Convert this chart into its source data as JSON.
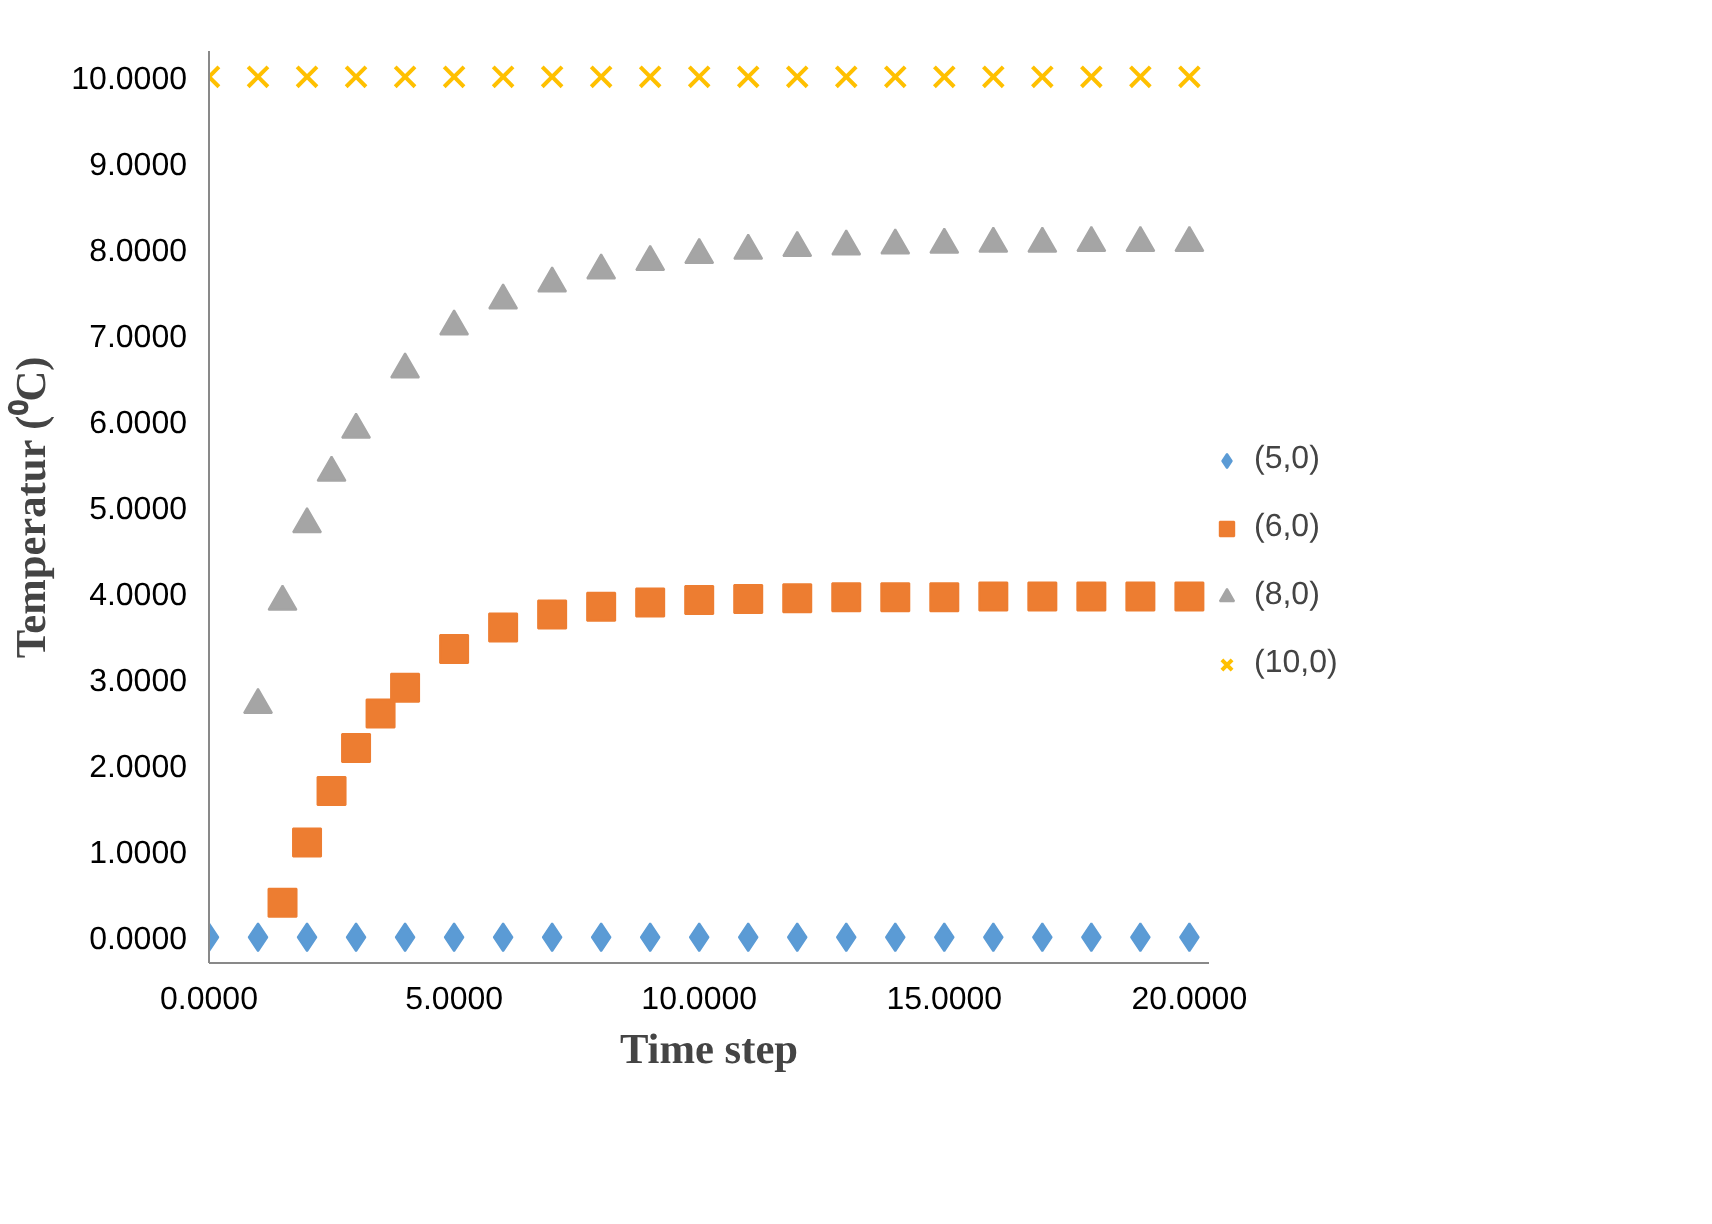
{
  "chart_data": {
    "type": "scatter",
    "xlabel": "Time step",
    "ylabel": "Temperatur (⁰C)",
    "x": [
      0,
      1,
      2,
      3,
      4,
      5,
      6,
      7,
      8,
      9,
      10,
      11,
      12,
      13,
      14,
      15,
      16,
      17,
      18,
      19,
      20
    ],
    "series": [
      {
        "name": "(5,0)",
        "color": "#5b9bd5",
        "marker": "diamond",
        "values": [
          0,
          0,
          0,
          0,
          0,
          0,
          0,
          0,
          0,
          0,
          0,
          0,
          0,
          0,
          0,
          0,
          0,
          0,
          0,
          0,
          0
        ]
      },
      {
        "name": "(6,0)",
        "color": "#ed7d31",
        "marker": "square",
        "x": [
          1.5,
          2,
          2.5,
          3,
          3.5,
          4,
          5,
          6,
          7,
          8,
          9,
          10,
          11,
          12,
          13,
          14,
          15,
          16,
          17,
          18,
          19,
          20
        ],
        "values": [
          0.4,
          1.1,
          1.7,
          2.2,
          2.6,
          2.9,
          3.35,
          3.6,
          3.75,
          3.84,
          3.89,
          3.92,
          3.93,
          3.94,
          3.95,
          3.95,
          3.95,
          3.96,
          3.96,
          3.96,
          3.96,
          3.96
        ]
      },
      {
        "name": "(8,0)",
        "color": "#a5a5a5",
        "marker": "triangle",
        "x": [
          1,
          1.5,
          2,
          2.5,
          3,
          4,
          5,
          6,
          7,
          8,
          9,
          10,
          11,
          12,
          13,
          14,
          15,
          16,
          17,
          18,
          19,
          20
        ],
        "values": [
          2.7,
          3.9,
          4.8,
          5.4,
          5.9,
          6.6,
          7.1,
          7.4,
          7.6,
          7.75,
          7.85,
          7.93,
          7.98,
          8.01,
          8.03,
          8.04,
          8.05,
          8.06,
          8.06,
          8.07,
          8.07,
          8.07
        ]
      },
      {
        "name": "(10,0)",
        "color": "#ffc000",
        "marker": "cross",
        "values": [
          10,
          10,
          10,
          10,
          10,
          10,
          10,
          10,
          10,
          10,
          10,
          10,
          10,
          10,
          10,
          10,
          10,
          10,
          10,
          10,
          10
        ]
      }
    ],
    "xlim": [
      0,
      20.4
    ],
    "ylim": [
      -0.3,
      10.3
    ],
    "xticks": [
      {
        "value": 0,
        "label": "0.0000"
      },
      {
        "value": 5,
        "label": "5.0000"
      },
      {
        "value": 10,
        "label": "10.0000"
      },
      {
        "value": 15,
        "label": "15.0000"
      },
      {
        "value": 20,
        "label": "20.0000"
      }
    ],
    "yticks": [
      {
        "value": 0,
        "label": "0.0000"
      },
      {
        "value": 1,
        "label": "1.0000"
      },
      {
        "value": 2,
        "label": "2.0000"
      },
      {
        "value": 3,
        "label": "3.0000"
      },
      {
        "value": 4,
        "label": "4.0000"
      },
      {
        "value": 5,
        "label": "5.0000"
      },
      {
        "value": 6,
        "label": "6.0000"
      },
      {
        "value": 7,
        "label": "7.0000"
      },
      {
        "value": 8,
        "label": "8.0000"
      },
      {
        "value": 9,
        "label": "9.0000"
      },
      {
        "value": 10,
        "label": "10.0000"
      }
    ],
    "grid": false,
    "legend": "right"
  }
}
